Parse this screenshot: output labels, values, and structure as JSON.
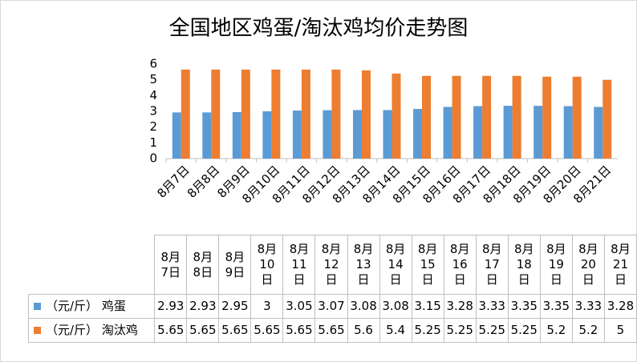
{
  "chart_data": {
    "type": "bar",
    "title": "全国地区鸡蛋/淘汰鸡均价走势图",
    "categories": [
      "8月7日",
      "8月8日",
      "8月9日",
      "8月10日",
      "8月11日",
      "8月12日",
      "8月13日",
      "8月14日",
      "8月15日",
      "8月16日",
      "8月17日",
      "8月18日",
      "8月19日",
      "8月20日",
      "8月21日"
    ],
    "series": [
      {
        "name": "（元/斤） 鸡蛋",
        "color": "#5b9bd5",
        "values": [
          2.93,
          2.93,
          2.95,
          3,
          3.05,
          3.07,
          3.08,
          3.08,
          3.15,
          3.28,
          3.33,
          3.35,
          3.35,
          3.33,
          3.28
        ]
      },
      {
        "name": "（元/斤） 淘汰鸡",
        "color": "#ed7d31",
        "values": [
          5.65,
          5.65,
          5.65,
          5.65,
          5.65,
          5.65,
          5.6,
          5.4,
          5.25,
          5.25,
          5.25,
          5.25,
          5.2,
          5.2,
          5
        ]
      }
    ],
    "ylim": [
      0,
      6
    ],
    "yticks": [
      0,
      1,
      2,
      3,
      4,
      5,
      6
    ],
    "grid": false
  }
}
